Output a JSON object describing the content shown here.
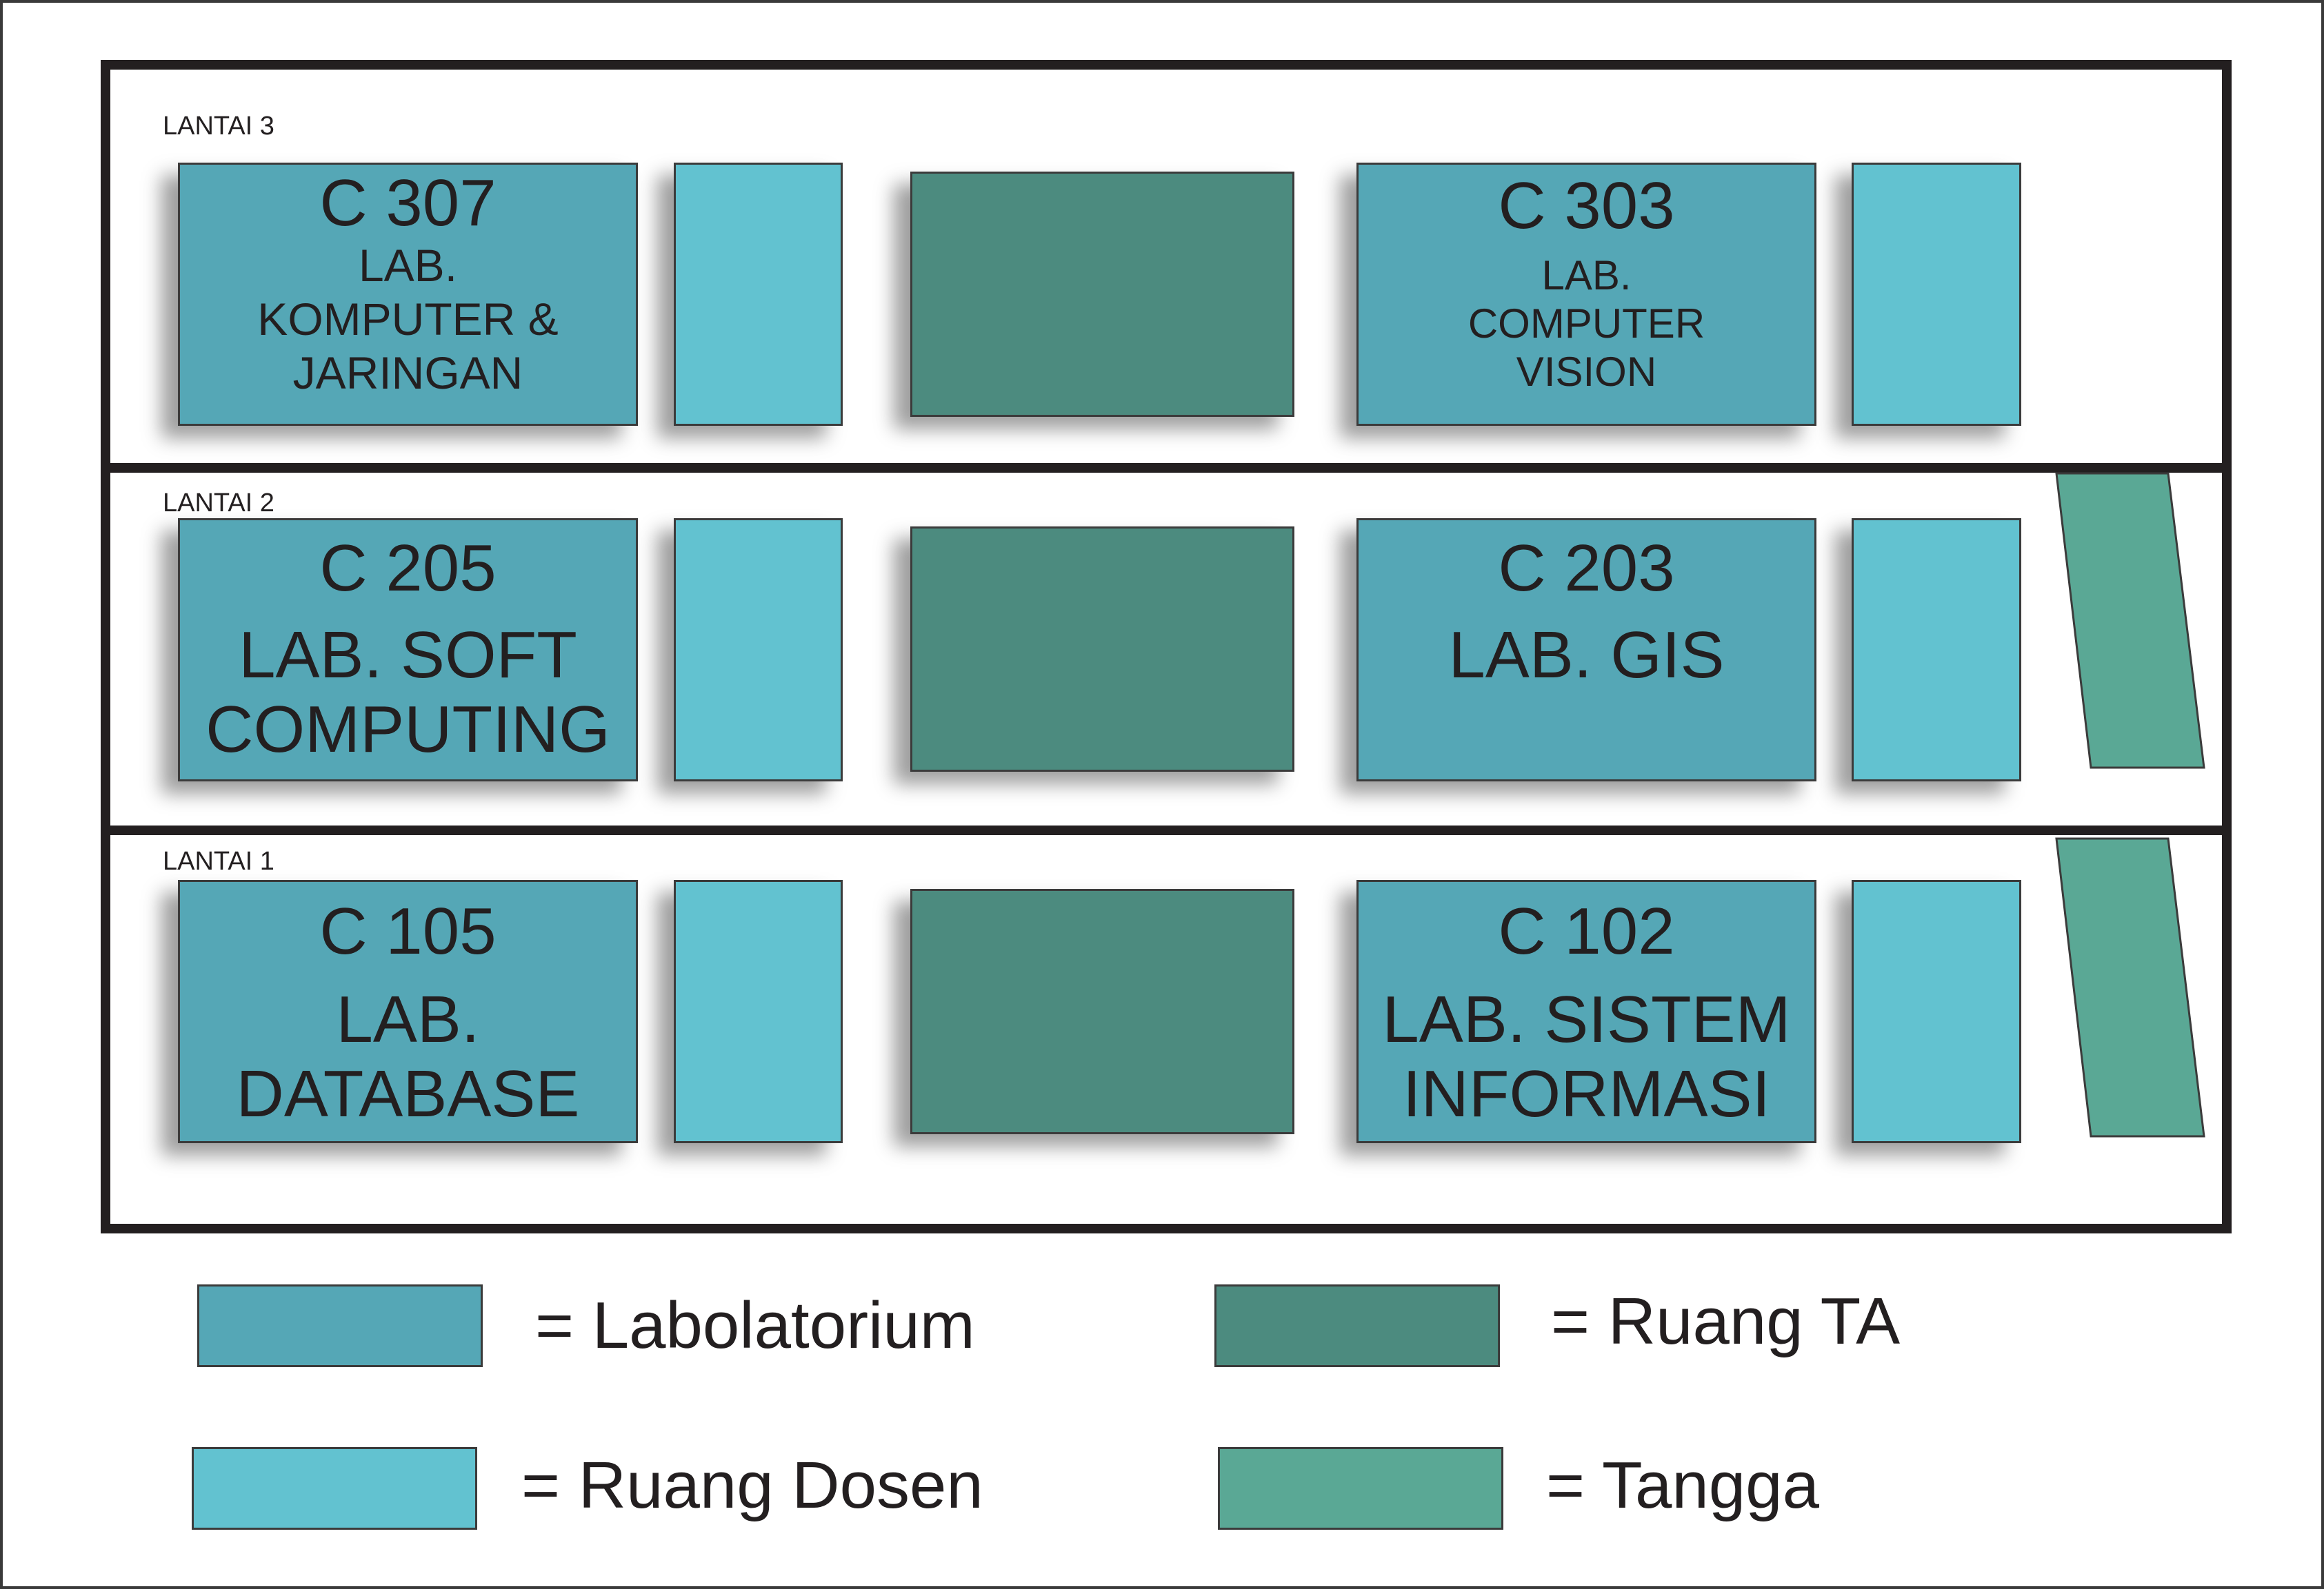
{
  "colors": {
    "lab": "#55a7b6",
    "dosen": "#62c2d0",
    "ruang_ta": "#4c8b7f",
    "tangga": "#5aa895",
    "outline": "#231f20"
  },
  "floors": {
    "f3": {
      "label": "LANTAI 3",
      "lab_left": {
        "code": "C 307",
        "line1": "LAB.",
        "line2": "KOMPUTER &",
        "line3": "JARINGAN"
      },
      "lab_right": {
        "code": "C 303",
        "line1": "LAB.",
        "line2": "COMPUTER",
        "line3": "VISION"
      }
    },
    "f2": {
      "label": "LANTAI 2",
      "lab_left": {
        "code": "C 205",
        "line1": "LAB. SOFT",
        "line2": "COMPUTING"
      },
      "lab_right": {
        "code": "C 203",
        "line1": "LAB. GIS"
      }
    },
    "f1": {
      "label": "LANTAI 1",
      "lab_left": {
        "code": "C 105",
        "line1": "LAB.",
        "line2": "DATABASE"
      },
      "lab_right": {
        "code": "C 102",
        "line1": "LAB. SISTEM",
        "line2": "INFORMASI"
      }
    }
  },
  "legend": {
    "lab": "= Labolatorium",
    "ruang_ta": "= Ruang TA",
    "dosen": "= Ruang Dosen",
    "tangga": "= Tangga"
  }
}
